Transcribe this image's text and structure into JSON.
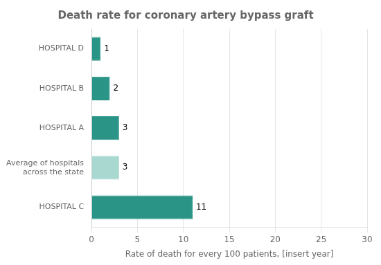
{
  "chart_data": {
    "type": "bar",
    "orientation": "horizontal",
    "title": "Death rate for coronary artery bypass graft",
    "xlabel": "Rate of death for every 100 patients, [insert year]",
    "categories": [
      "HOSPITAL C",
      "Average of hospitals\nacross the state",
      "HOSPITAL A",
      "HOSPITAL B",
      "HOSPITAL D"
    ],
    "values": [
      11,
      3,
      3,
      2,
      1
    ],
    "colors": [
      "#2a9487",
      "#a8d8d0",
      "#2a9487",
      "#2a9487",
      "#2a9487"
    ],
    "xlim": [
      0,
      30
    ],
    "xticks": [
      0,
      5,
      10,
      15,
      20,
      25,
      30
    ],
    "grid": true,
    "data_labels": true
  }
}
